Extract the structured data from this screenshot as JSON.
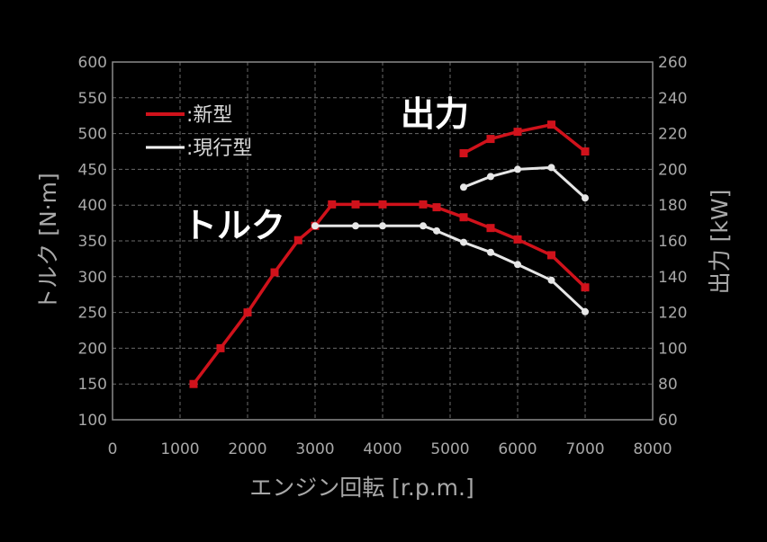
{
  "chart_data": {
    "type": "line",
    "xlabel": "エンジン回転 [r.p.m.]",
    "ylabel_left": "トルク [N·m]",
    "ylabel_right": "出力 [kW]",
    "xlim": [
      0,
      8000
    ],
    "ylim_left": [
      100,
      600
    ],
    "ylim_right": [
      60,
      260
    ],
    "x_ticks": [
      0,
      1000,
      2000,
      3000,
      4000,
      5000,
      6000,
      7000,
      8000
    ],
    "y_ticks_left": [
      100,
      150,
      200,
      250,
      300,
      350,
      400,
      450,
      500,
      550,
      600
    ],
    "y_ticks_right": [
      60,
      80,
      100,
      120,
      140,
      160,
      180,
      200,
      220,
      240,
      260
    ],
    "grid": true,
    "legend_position": "top-left",
    "legend": [
      {
        "label": ":新型",
        "color": "#d0121b"
      },
      {
        "label": ":現行型",
        "color": "#ffffff"
      }
    ],
    "annotations": [
      {
        "text": "出力"
      },
      {
        "text": "トルク"
      }
    ],
    "series": [
      {
        "name": "新型",
        "group": "トルク",
        "axis": "left",
        "color": "#d0121b",
        "marker": "square",
        "x": [
          1200,
          1600,
          2000,
          2400,
          2750,
          3000,
          3250,
          3600,
          4000,
          4600,
          4800,
          5200,
          5600,
          6000,
          6500,
          7000
        ],
        "y": [
          150,
          200,
          250,
          306,
          351,
          371,
          401,
          401,
          401,
          401,
          397,
          383,
          368,
          352,
          330,
          285
        ]
      },
      {
        "name": "現行型",
        "group": "トルク",
        "axis": "left",
        "color": "#e6e6e6",
        "marker": "circle",
        "x": [
          3000,
          3600,
          4000,
          4600,
          4800,
          5200,
          5600,
          6000,
          6500,
          7000
        ],
        "y": [
          371,
          371,
          371,
          371,
          364,
          348,
          334,
          317,
          295,
          251
        ]
      },
      {
        "name": "新型",
        "group": "出力",
        "axis": "right",
        "color": "#d0121b",
        "marker": "square",
        "x": [
          5200,
          5600,
          6000,
          6500,
          7000
        ],
        "y": [
          209,
          217,
          221,
          225,
          210
        ]
      },
      {
        "name": "現行型",
        "group": "出力",
        "axis": "right",
        "color": "#e6e6e6",
        "marker": "circle",
        "x": [
          5200,
          5600,
          6000,
          6500,
          7000
        ],
        "y": [
          190,
          196,
          200,
          201,
          184
        ]
      }
    ]
  }
}
